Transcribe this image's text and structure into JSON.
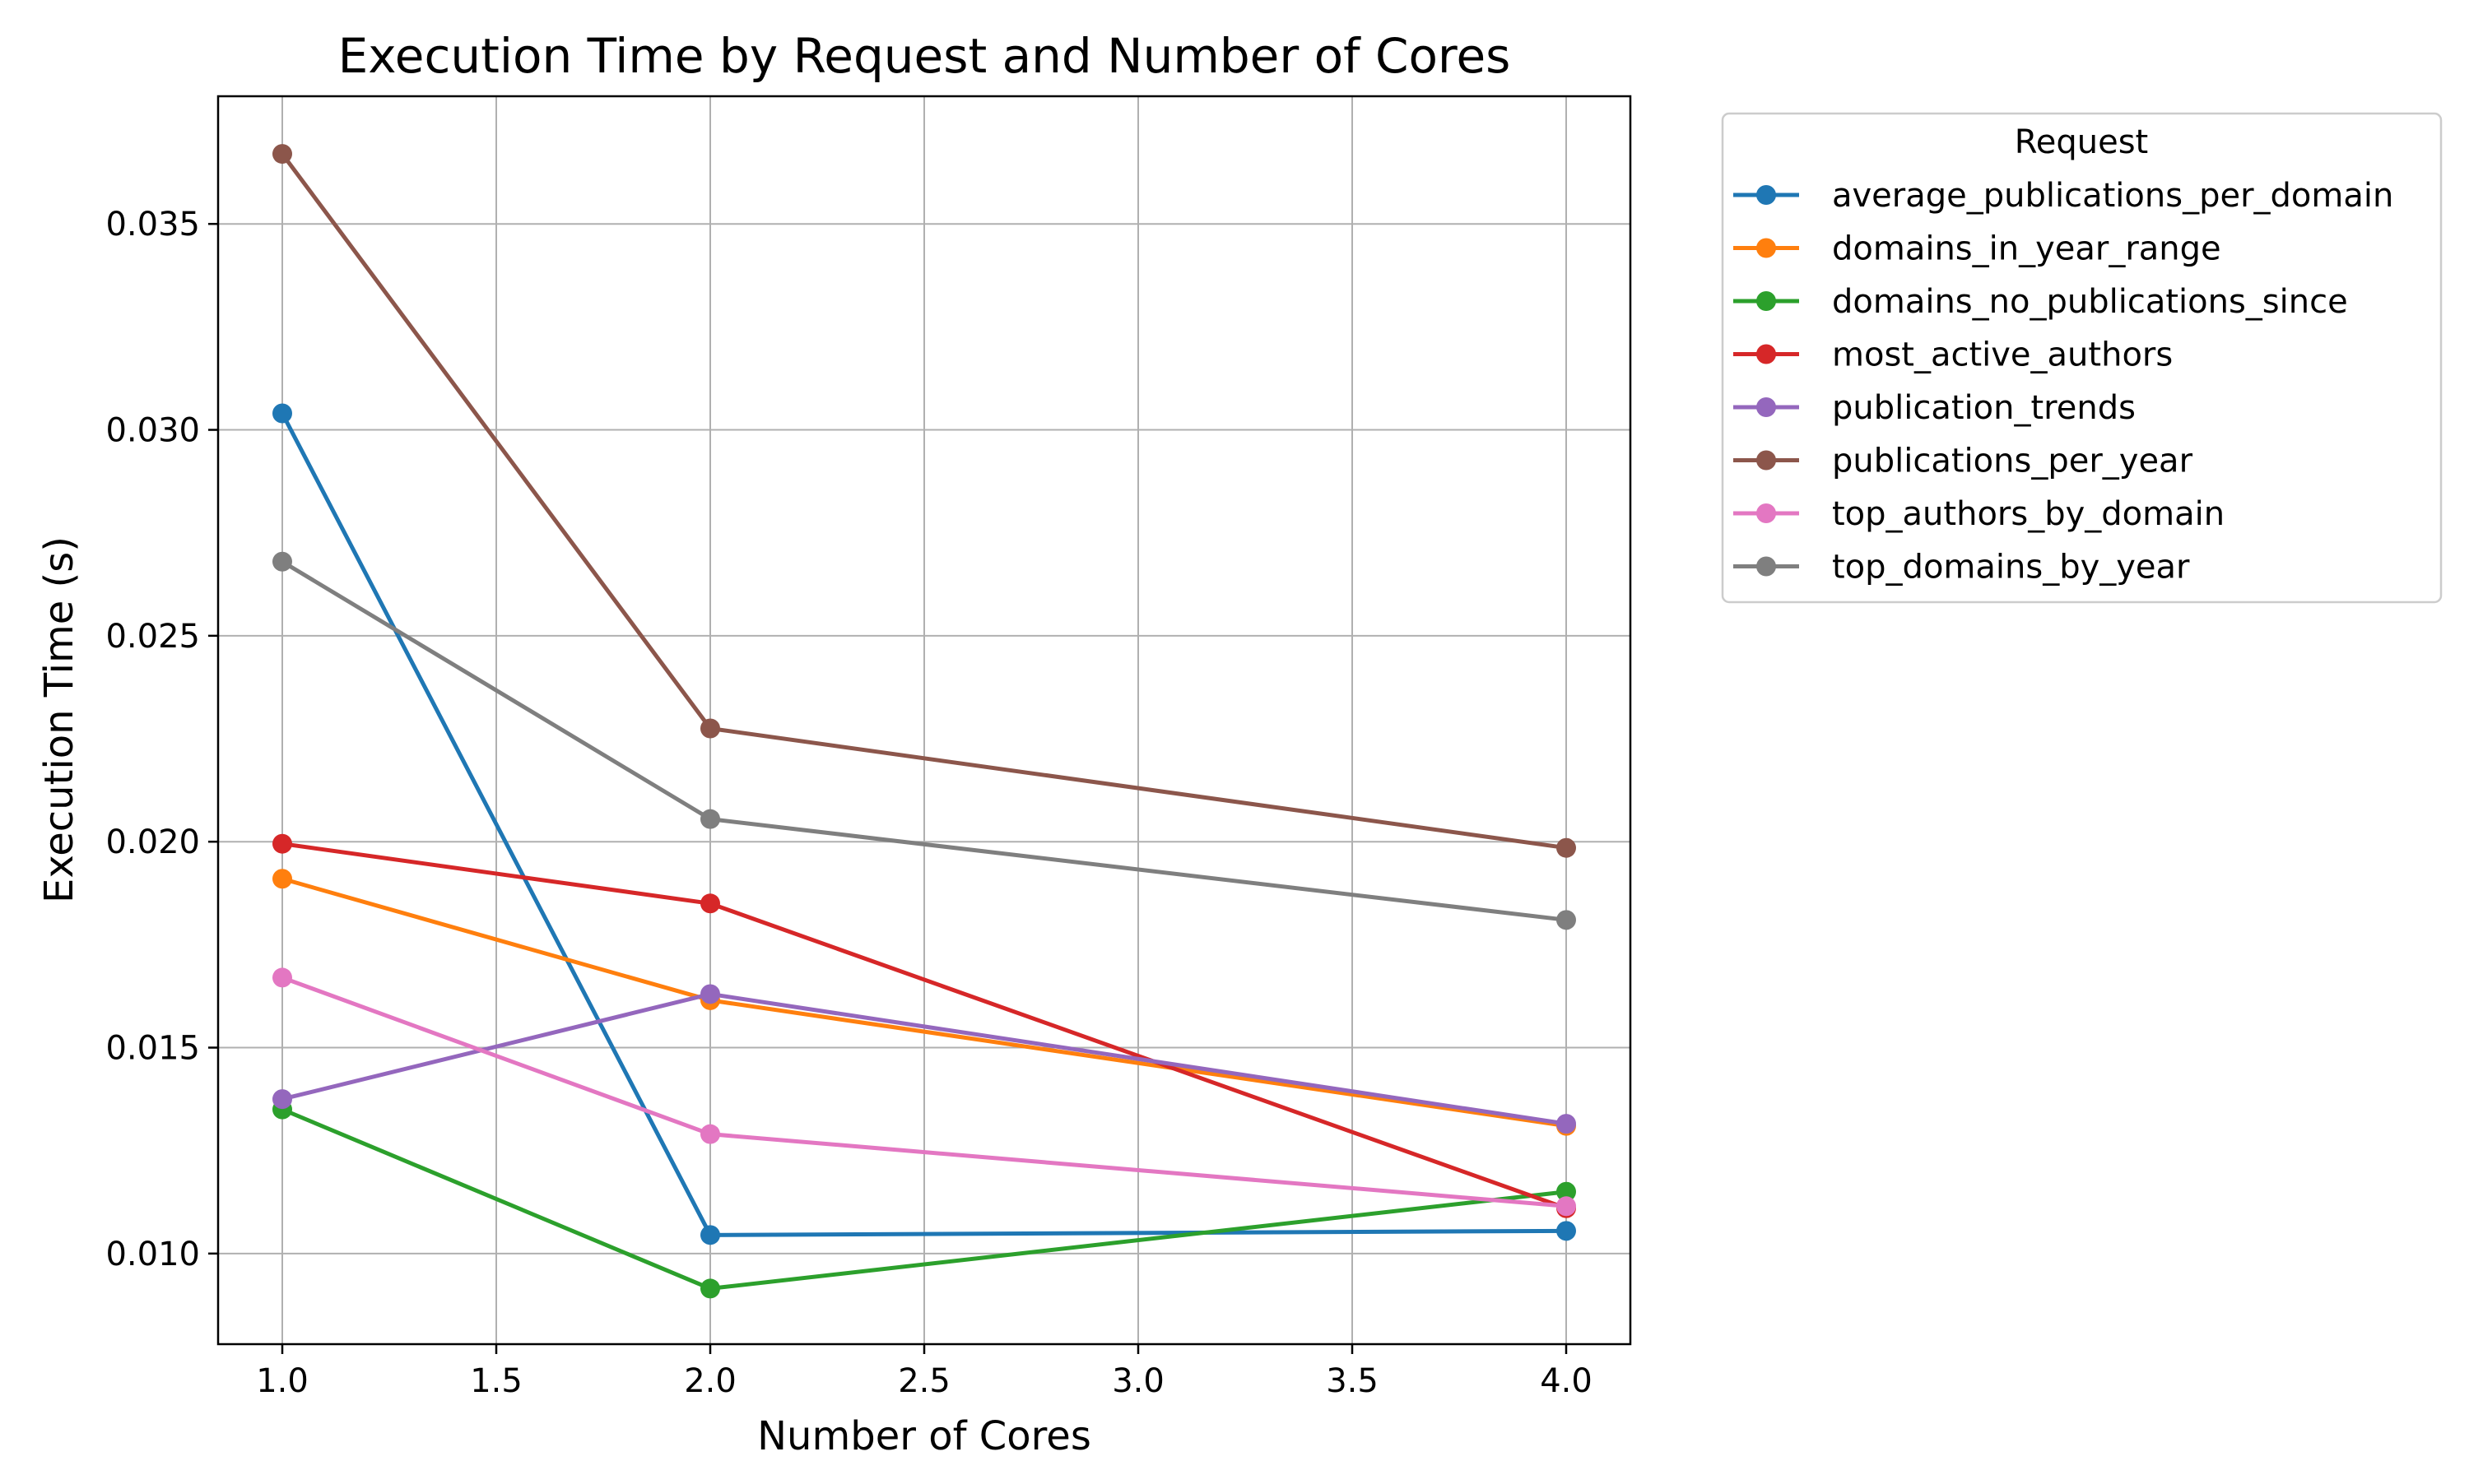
{
  "chart_data": {
    "type": "line",
    "title": "Execution Time by Request and Number of Cores",
    "xlabel": "Number of Cores",
    "ylabel": "Execution Time (s)",
    "xlim": [
      0.85,
      4.15
    ],
    "ylim": [
      0.0078,
      0.0381
    ],
    "xticks": [
      1.0,
      1.5,
      2.0,
      2.5,
      3.0,
      3.5,
      4.0
    ],
    "xtick_labels": [
      "1.0",
      "1.5",
      "2.0",
      "2.5",
      "3.0",
      "3.5",
      "4.0"
    ],
    "yticks": [
      0.01,
      0.015,
      0.02,
      0.025,
      0.03,
      0.035
    ],
    "ytick_labels": [
      "0.010",
      "0.015",
      "0.020",
      "0.025",
      "0.030",
      "0.035"
    ],
    "grid": true,
    "legend": {
      "title": "Request",
      "placement": "outside-right-top"
    },
    "x": [
      1,
      2,
      4
    ],
    "series": [
      {
        "name": "average_publications_per_domain",
        "color": "#1f77b4",
        "values": [
          0.0304,
          0.01045,
          0.01055
        ]
      },
      {
        "name": "domains_in_year_range",
        "color": "#ff7f0e",
        "values": [
          0.0191,
          0.01615,
          0.0131
        ]
      },
      {
        "name": "domains_no_publications_since",
        "color": "#2ca02c",
        "values": [
          0.0135,
          0.00915,
          0.0115
        ]
      },
      {
        "name": "most_active_authors",
        "color": "#d62728",
        "values": [
          0.01995,
          0.0185,
          0.0111
        ]
      },
      {
        "name": "publication_trends",
        "color": "#9467bd",
        "values": [
          0.01375,
          0.0163,
          0.01315
        ]
      },
      {
        "name": "publications_per_year",
        "color": "#8c564b",
        "values": [
          0.0367,
          0.02275,
          0.01985
        ]
      },
      {
        "name": "top_authors_by_domain",
        "color": "#e377c2",
        "values": [
          0.0167,
          0.0129,
          0.01115
        ]
      },
      {
        "name": "top_domains_by_year",
        "color": "#7f7f7f",
        "values": [
          0.0268,
          0.02055,
          0.0181
        ]
      }
    ]
  }
}
